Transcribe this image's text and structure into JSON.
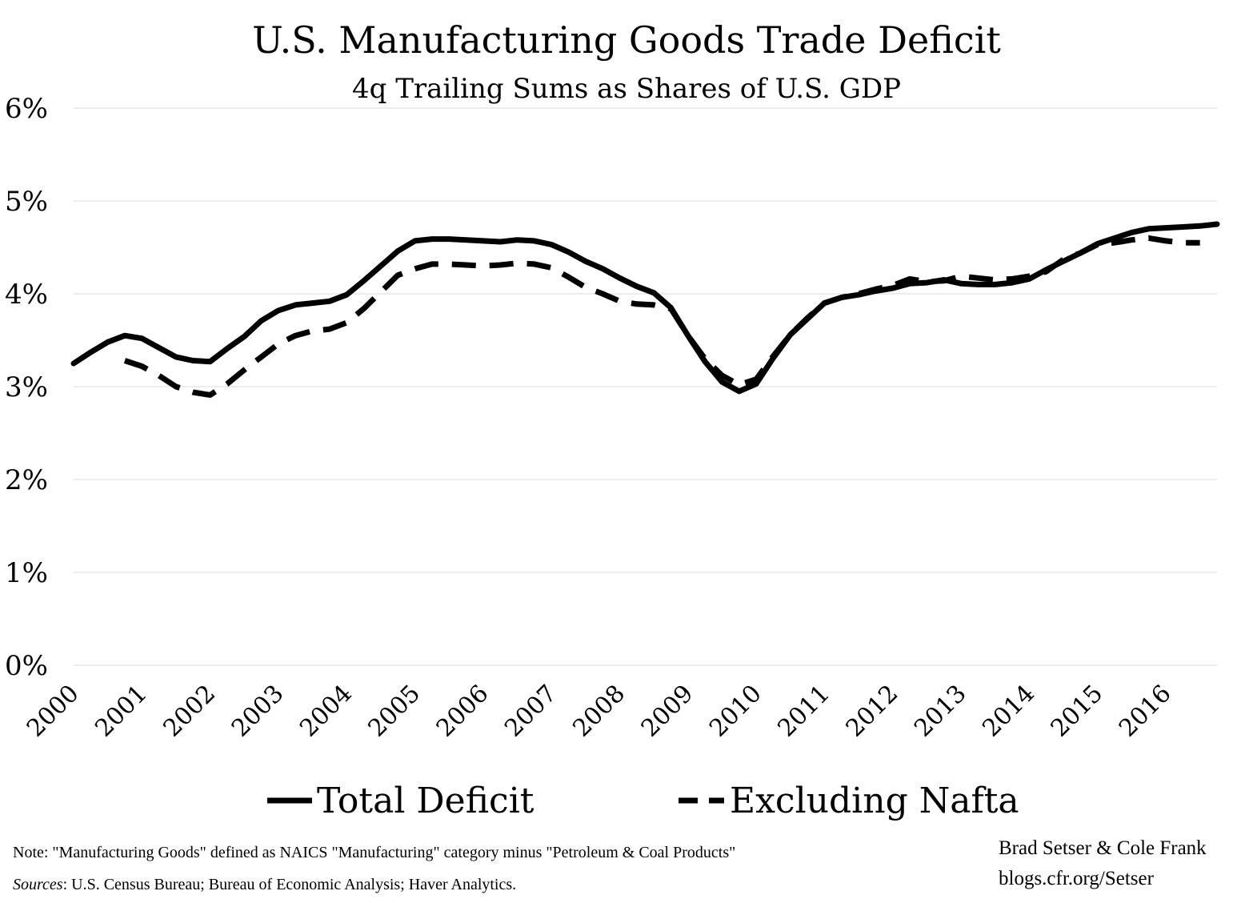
{
  "chart_data": {
    "type": "line",
    "title": "U.S. Manufacturing Goods Trade Deficit",
    "subtitle": "4q Trailing Sums as Shares of U.S. GDP",
    "xlabel": "",
    "ylabel": "",
    "ylim": [
      0,
      6
    ],
    "xlim": [
      2000.0,
      2016.75
    ],
    "y_ticks": [
      "0%",
      "1%",
      "2%",
      "3%",
      "4%",
      "5%",
      "6%"
    ],
    "x_ticks": [
      "2000",
      "2001",
      "2002",
      "2003",
      "2004",
      "2005",
      "2006",
      "2007",
      "2008",
      "2009",
      "2010",
      "2011",
      "2012",
      "2013",
      "2014",
      "2015",
      "2016"
    ],
    "grid": true,
    "legend_position": "bottom",
    "series": [
      {
        "name": "Total Deficit",
        "style": "solid",
        "color": "#000000",
        "x": [
          2000.0,
          2000.25,
          2000.5,
          2000.75,
          2001.0,
          2001.25,
          2001.5,
          2001.75,
          2002.0,
          2002.25,
          2002.5,
          2002.75,
          2003.0,
          2003.25,
          2003.5,
          2003.75,
          2004.0,
          2004.25,
          2004.5,
          2004.75,
          2005.0,
          2005.25,
          2005.5,
          2005.75,
          2006.0,
          2006.25,
          2006.5,
          2006.75,
          2007.0,
          2007.25,
          2007.5,
          2007.75,
          2008.0,
          2008.25,
          2008.5,
          2008.75,
          2009.0,
          2009.25,
          2009.5,
          2009.75,
          2010.0,
          2010.25,
          2010.5,
          2010.75,
          2011.0,
          2011.25,
          2011.5,
          2011.75,
          2012.0,
          2012.25,
          2012.5,
          2012.75,
          2013.0,
          2013.25,
          2013.5,
          2013.75,
          2014.0,
          2014.25,
          2014.5,
          2014.75,
          2015.0,
          2015.25,
          2015.5,
          2015.75,
          2016.0,
          2016.25,
          2016.5,
          2016.75
        ],
        "values": [
          3.25,
          3.37,
          3.48,
          3.55,
          3.52,
          3.42,
          3.32,
          3.28,
          3.27,
          3.41,
          3.54,
          3.71,
          3.82,
          3.88,
          3.9,
          3.92,
          3.99,
          4.14,
          4.3,
          4.46,
          4.57,
          4.59,
          4.59,
          4.58,
          4.57,
          4.56,
          4.58,
          4.57,
          4.53,
          4.45,
          4.35,
          4.27,
          4.17,
          4.08,
          4.01,
          3.85,
          3.55,
          3.27,
          3.05,
          2.95,
          3.03,
          3.31,
          3.56,
          3.73,
          3.9,
          3.96,
          3.99,
          4.03,
          4.06,
          4.11,
          4.12,
          4.15,
          4.11,
          4.1,
          4.1,
          4.12,
          4.16,
          4.26,
          4.35,
          4.44,
          4.54,
          4.6,
          4.66,
          4.7,
          4.71,
          4.72,
          4.73,
          4.75
        ]
      },
      {
        "name": "Excluding Nafta",
        "style": "dashed",
        "color": "#000000",
        "x": [
          2000.75,
          2001.0,
          2001.25,
          2001.5,
          2001.75,
          2002.0,
          2002.25,
          2002.5,
          2002.75,
          2003.0,
          2003.25,
          2003.5,
          2003.75,
          2004.0,
          2004.25,
          2004.5,
          2004.75,
          2005.0,
          2005.25,
          2005.5,
          2005.75,
          2006.0,
          2006.25,
          2006.5,
          2006.75,
          2007.0,
          2007.25,
          2007.5,
          2007.75,
          2008.0,
          2008.25,
          2008.5,
          2008.75,
          2009.0,
          2009.25,
          2009.5,
          2009.75,
          2010.0,
          2010.25,
          2010.5,
          2010.75,
          2011.0,
          2011.25,
          2011.5,
          2011.75,
          2012.0,
          2012.25,
          2012.5,
          2012.75,
          2013.0,
          2013.25,
          2013.5,
          2013.75,
          2014.0,
          2014.25,
          2014.5,
          2014.75,
          2015.0,
          2015.25,
          2015.5,
          2015.75,
          2016.0,
          2016.25,
          2016.5
        ],
        "values": [
          3.28,
          3.22,
          3.12,
          3.0,
          2.94,
          2.91,
          3.03,
          3.18,
          3.32,
          3.46,
          3.55,
          3.6,
          3.62,
          3.69,
          3.84,
          4.02,
          4.2,
          4.27,
          4.32,
          4.32,
          4.31,
          4.3,
          4.31,
          4.33,
          4.32,
          4.28,
          4.18,
          4.07,
          4.0,
          3.92,
          3.89,
          3.88,
          3.84,
          3.55,
          3.3,
          3.12,
          3.02,
          3.08,
          3.33,
          3.56,
          3.74,
          3.9,
          3.96,
          4.0,
          4.05,
          4.09,
          4.16,
          4.13,
          4.14,
          4.19,
          4.17,
          4.15,
          4.16,
          4.19,
          4.24,
          4.37,
          4.44,
          4.53,
          4.55,
          4.58,
          4.6,
          4.57,
          4.55,
          4.55
        ]
      }
    ]
  },
  "footer": {
    "note": "Note: \"Manufacturing Goods\" defined as NAICS \"Manufacturing\" category minus \"Petroleum & Coal Products\"",
    "sources_label": "Sources",
    "sources_text": ": U.S. Census Bureau; Bureau of Economic Analysis; Haver Analytics.",
    "credit_authors": "Brad Setser & Cole Frank",
    "credit_url": "blogs.cfr.org/Setser"
  }
}
